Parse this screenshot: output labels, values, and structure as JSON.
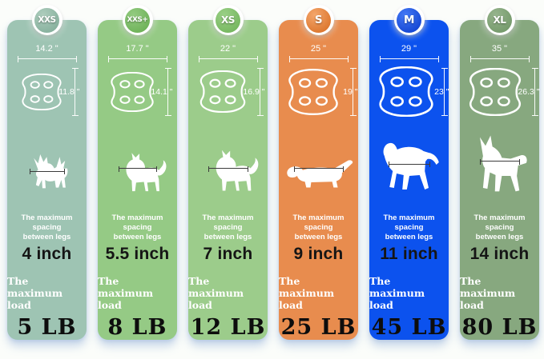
{
  "page": {
    "background": "#fbfdfa",
    "shadow_tint": "#8caad7"
  },
  "columns": [
    {
      "size": "XXS",
      "column_color": "#9ec4b3",
      "badge_color_top": "#aecdbd",
      "badge_color_bottom": "#7ca995",
      "width_label": "14.2 \"",
      "height_label": "11.8 \"",
      "dog": "longhair-chihuahua-silhouette",
      "spacing_title": "The maximum spacing\nbetween legs",
      "spacing_value": "4 inch",
      "load_title": "The maximum load",
      "load_value": "5 LB"
    },
    {
      "size": "XXS+",
      "column_color": "#95ca85",
      "badge_color_top": "#93cb80",
      "badge_color_bottom": "#64ab4e",
      "width_label": "17.7 \"",
      "height_label": "14.1 \"",
      "dog": "spitz-curled-tail-silhouette",
      "spacing_title": "The maximum spacing\nbetween legs",
      "spacing_value": "5.5 inch",
      "load_title": "The maximum load",
      "load_value": "8 LB"
    },
    {
      "size": "XS",
      "column_color": "#9ccc8b",
      "badge_color_top": "#9ad086",
      "badge_color_bottom": "#6cb055",
      "width_label": "22 \"",
      "height_label": "16.9 \"",
      "dog": "small-dog-curled-tail-silhouette",
      "spacing_title": "The maximum spacing\nbetween legs",
      "spacing_value": "7 inch",
      "load_title": "The maximum load",
      "load_value": "12 LB"
    },
    {
      "size": "S",
      "column_color": "#e88c4e",
      "badge_color_top": "#f4a66b",
      "badge_color_bottom": "#d66a1e",
      "width_label": "25 \"",
      "height_label": "19 \"",
      "dog": "dachshund-silhouette",
      "spacing_title": "The maximum spacing\nbetween legs",
      "spacing_value": "9 inch",
      "load_title": "The maximum load",
      "load_value": "25 LB"
    },
    {
      "size": "M",
      "column_color": "#0c52ee",
      "badge_color_top": "#4479f6",
      "badge_color_bottom": "#0839c9",
      "width_label": "29 \"",
      "height_label": "23 \"",
      "dog": "pointer-dog-silhouette",
      "spacing_title": "The maximum spacing\nbetween legs",
      "spacing_value": "11 inch",
      "load_title": "The maximum load",
      "load_value": "45 LB"
    },
    {
      "size": "XL",
      "column_color": "#87a87f",
      "badge_color_top": "#96b48d",
      "badge_color_bottom": "#6c9362",
      "width_label": "35 \"",
      "height_label": "26.3 \"",
      "dog": "doberman-silhouette",
      "spacing_title": "The maximum spacing\nbetween legs",
      "spacing_value": "14 inch",
      "load_title": "The maximum load",
      "load_value": "80 LB"
    }
  ]
}
